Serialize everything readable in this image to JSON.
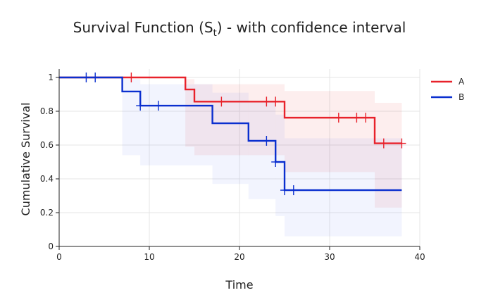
{
  "chart_data": {
    "type": "line",
    "title": "Survival Function (S",
    "title_sub": "t",
    "title_suffix": ") - with confidence interval",
    "xlabel": "Time",
    "ylabel": "Cumulative Survival",
    "xlim": [
      0,
      40
    ],
    "ylim": [
      0,
      1.05
    ],
    "x_ticks": [
      0,
      10,
      20,
      30,
      40
    ],
    "y_ticks": [
      0,
      0.2,
      0.4,
      0.6,
      0.8,
      1
    ],
    "x_tick_labels": [
      "0",
      "10",
      "20",
      "30",
      "40"
    ],
    "y_tick_labels": [
      "0",
      "0.2",
      "0.4",
      "0.6",
      "0.8",
      "1"
    ],
    "grid": true,
    "legend_position": "top-right",
    "series": [
      {
        "name": "A",
        "color": "#e8222b",
        "band_color": "#e8222b",
        "steps": [
          [
            0,
            1
          ],
          [
            14,
            0.929
          ],
          [
            15,
            0.857
          ],
          [
            25,
            0.762
          ],
          [
            35,
            0.61
          ],
          [
            38,
            0.61
          ]
        ],
        "ci": [
          [
            0,
            1,
            1
          ],
          [
            14,
            0.59,
            0.99
          ],
          [
            15,
            0.54,
            0.96
          ],
          [
            25,
            0.44,
            0.92
          ],
          [
            35,
            0.23,
            0.85
          ],
          [
            38,
            0.23,
            0.85
          ]
        ],
        "censored": [
          [
            8,
            1
          ],
          [
            18,
            0.857
          ],
          [
            23,
            0.857
          ],
          [
            24,
            0.857
          ],
          [
            31,
            0.762
          ],
          [
            33,
            0.762
          ],
          [
            34,
            0.762
          ],
          [
            36,
            0.61
          ],
          [
            38,
            0.61
          ]
        ]
      },
      {
        "name": "B",
        "color": "#0a2fcf",
        "band_color": "#5b74f0",
        "steps": [
          [
            0,
            1
          ],
          [
            7,
            0.917
          ],
          [
            9,
            0.833
          ],
          [
            17,
            0.729
          ],
          [
            21,
            0.625
          ],
          [
            24,
            0.5
          ],
          [
            25,
            0.333
          ],
          [
            38,
            0.333
          ]
        ],
        "ci": [
          [
            0,
            1,
            1
          ],
          [
            7,
            0.54,
            0.99
          ],
          [
            9,
            0.48,
            0.96
          ],
          [
            17,
            0.37,
            0.91
          ],
          [
            21,
            0.28,
            0.86
          ],
          [
            24,
            0.18,
            0.78
          ],
          [
            25,
            0.06,
            0.64
          ],
          [
            38,
            0.06,
            0.64
          ]
        ],
        "censored": [
          [
            3,
            1
          ],
          [
            4,
            1
          ],
          [
            9,
            0.833
          ],
          [
            11,
            0.833
          ],
          [
            23,
            0.625
          ],
          [
            24,
            0.5
          ],
          [
            25,
            0.333
          ],
          [
            26,
            0.333
          ]
        ]
      }
    ]
  }
}
